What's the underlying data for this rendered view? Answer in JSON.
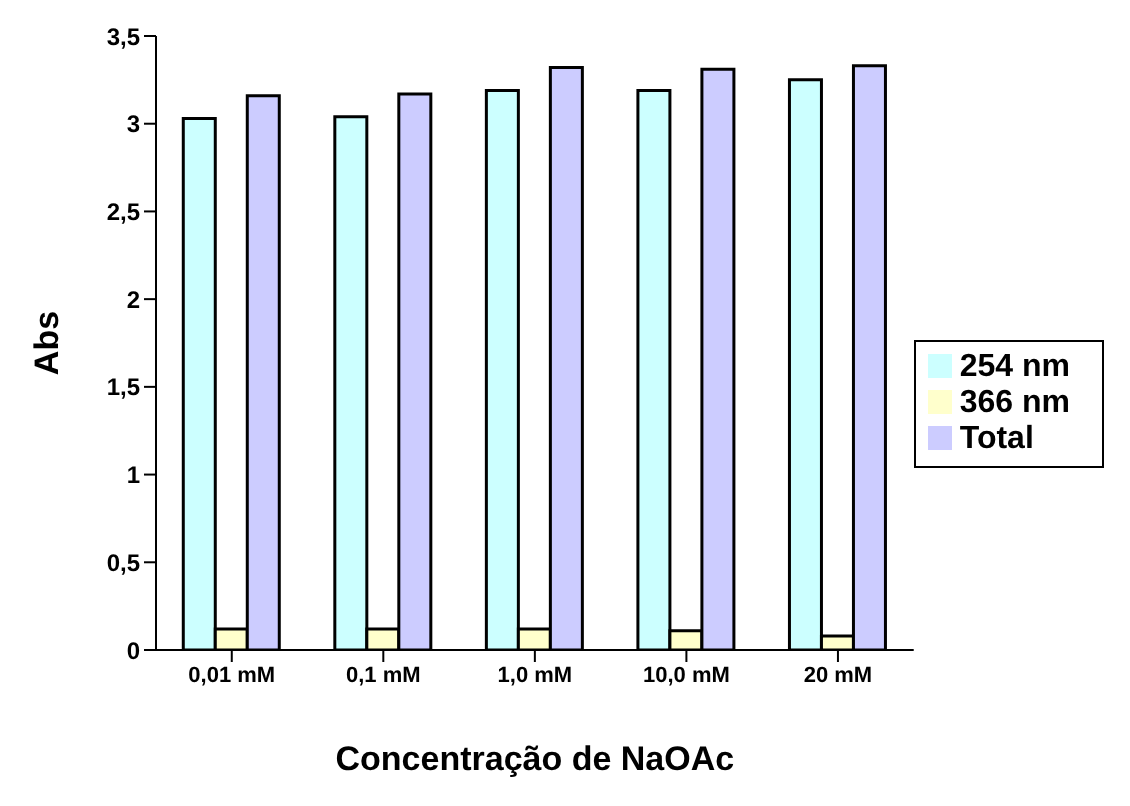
{
  "chart_data": {
    "type": "bar",
    "xlabel": "Concentração de NaOAc",
    "ylabel": "Abs",
    "categories": [
      "0,01 mM",
      "0,1 mM",
      "1,0 mM",
      "10,0 mM",
      "20 mM"
    ],
    "series": [
      {
        "name": "254 nm",
        "color": "#ccffff",
        "values": [
          3.03,
          3.04,
          3.19,
          3.19,
          3.25
        ]
      },
      {
        "name": "366 nm",
        "color": "#ffffcc",
        "values": [
          0.12,
          0.12,
          0.12,
          0.11,
          0.08
        ]
      },
      {
        "name": "Total",
        "color": "#ccccff",
        "values": [
          3.16,
          3.17,
          3.32,
          3.31,
          3.33
        ]
      }
    ],
    "ylim": [
      0,
      3.5
    ],
    "yticks": [
      {
        "value": 0,
        "label": "0"
      },
      {
        "value": 0.5,
        "label": "0,5"
      },
      {
        "value": 1,
        "label": "1"
      },
      {
        "value": 1.5,
        "label": "1,5"
      },
      {
        "value": 2,
        "label": "2"
      },
      {
        "value": 2.5,
        "label": "2,5"
      },
      {
        "value": 3,
        "label": "3"
      },
      {
        "value": 3.5,
        "label": "3,5"
      }
    ],
    "legend": "right"
  }
}
